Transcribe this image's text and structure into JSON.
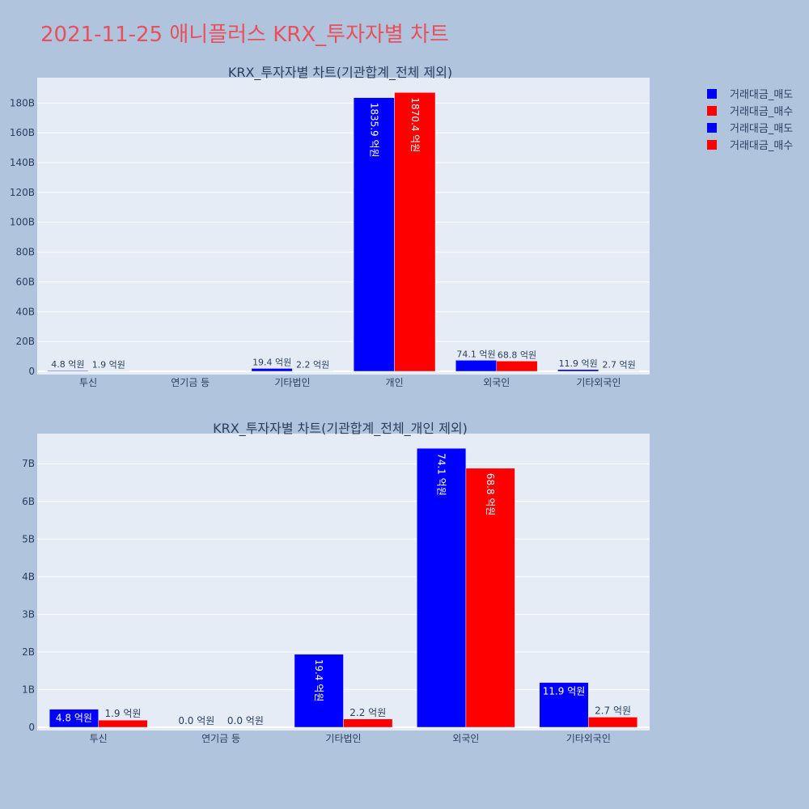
{
  "page_title": "2021-11-25 애니플러스 KRX_투자자별 차트",
  "colors": {
    "sell": "#0000ff",
    "buy": "#ff0000",
    "plot_bg": "#e5ecf6",
    "page_bg": "#b0c4de",
    "title": "#e8505b"
  },
  "legend": [
    {
      "label": "거래대금_매도",
      "color": "#0000ff"
    },
    {
      "label": "거래대금_매수",
      "color": "#ff0000"
    },
    {
      "label": "거래대금_매도",
      "color": "#0000ff"
    },
    {
      "label": "거래대금_매수",
      "color": "#ff0000"
    }
  ],
  "chart_data": [
    {
      "type": "bar",
      "title": "KRX_투자자별 차트(기관합계_전체 제외)",
      "categories": [
        "투신",
        "연기금 등",
        "기타법인",
        "개인",
        "외국인",
        "기타외국인"
      ],
      "series": [
        {
          "name": "거래대금_매도",
          "values": [
            0.48,
            0.0,
            1.94,
            183.59,
            7.41,
            1.19
          ],
          "labels": [
            "4.8 억원",
            "",
            "19.4 억원",
            "1835.9 억원",
            "74.1 억원",
            "11.9 억원"
          ]
        },
        {
          "name": "거래대금_매수",
          "values": [
            0.19,
            0.0,
            0.22,
            187.04,
            6.88,
            0.27
          ],
          "labels": [
            "1.9 억원",
            "",
            "2.2 억원",
            "1870.4 억원",
            "68.8 억원",
            "2.7 억원"
          ]
        }
      ],
      "yticks": [
        "0",
        "20B",
        "40B",
        "60B",
        "80B",
        "100B",
        "120B",
        "140B",
        "160B",
        "180B"
      ],
      "ytick_values": [
        0,
        20,
        40,
        60,
        80,
        100,
        120,
        140,
        160,
        180
      ],
      "ylim": [
        0,
        197
      ],
      "grid": true
    },
    {
      "type": "bar",
      "title": "KRX_투자자별 차트(기관합계_전체_개인 제외)",
      "categories": [
        "투신",
        "연기금 등",
        "기타법인",
        "외국인",
        "기타외국인"
      ],
      "series": [
        {
          "name": "거래대금_매도",
          "values": [
            0.48,
            0.0,
            1.94,
            7.41,
            1.19
          ],
          "labels": [
            "4.8 억원",
            "0.0 억원",
            "19.4 억원",
            "74.1 억원",
            "11.9 억원"
          ]
        },
        {
          "name": "거래대금_매수",
          "values": [
            0.19,
            0.0,
            0.22,
            6.88,
            0.27
          ],
          "labels": [
            "1.9 억원",
            "0.0 억원",
            "2.2 억원",
            "68.8 억원",
            "2.7 억원"
          ]
        }
      ],
      "yticks": [
        "0",
        "1B",
        "2B",
        "3B",
        "4B",
        "5B",
        "6B",
        "7B"
      ],
      "ytick_values": [
        0,
        1,
        2,
        3,
        4,
        5,
        6,
        7
      ],
      "ylim": [
        0,
        7.8
      ],
      "grid": true
    }
  ]
}
